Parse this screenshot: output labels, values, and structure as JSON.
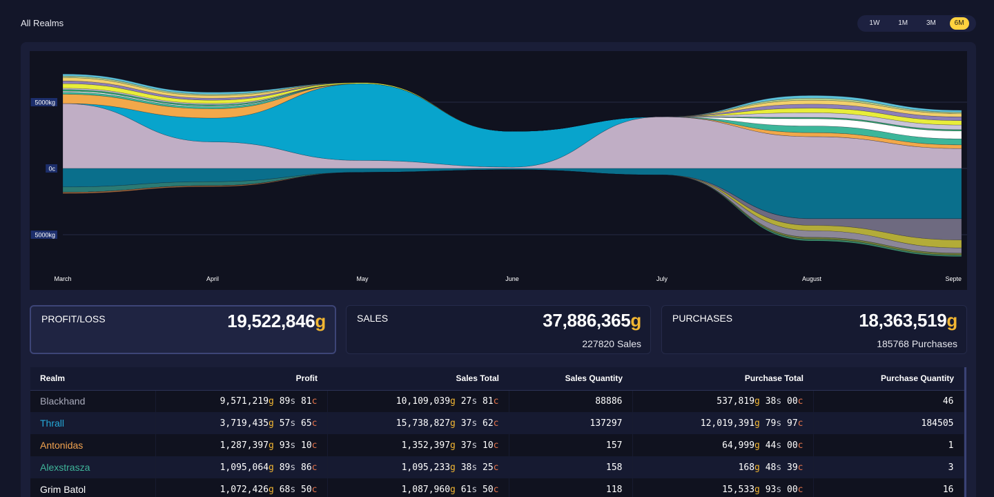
{
  "header": {
    "title": "All Realms",
    "ranges": [
      {
        "label": "1W",
        "active": false
      },
      {
        "label": "1M",
        "active": false
      },
      {
        "label": "3M",
        "active": false
      },
      {
        "label": "6M",
        "active": true
      }
    ]
  },
  "chart_data": {
    "type": "area",
    "stacked": "streamgraph",
    "x": [
      "March",
      "April",
      "May",
      "June",
      "July",
      "August",
      "Septe"
    ],
    "y_tick_labels": [
      "5000kg",
      "0c",
      "5000kg"
    ],
    "y_ticks": [
      5000,
      0,
      -5000
    ],
    "ylim": [
      -6500,
      7500
    ],
    "grid": true,
    "legend": "none",
    "positive_series": [
      {
        "color": "#c0aec5",
        "values": [
          4900,
          2000,
          600,
          100,
          3900,
          2400,
          1500
        ]
      },
      {
        "color": "#08a4cc",
        "values": [
          0,
          1800,
          5800,
          2700,
          0,
          0,
          0
        ]
      },
      {
        "color": "#f2a84a",
        "values": [
          700,
          700,
          0,
          0,
          0,
          300,
          280
        ]
      },
      {
        "color": "#3cb69a",
        "values": [
          150,
          150,
          0,
          0,
          0,
          500,
          450
        ]
      },
      {
        "color": "#ffffff",
        "values": [
          80,
          60,
          0,
          0,
          0,
          550,
          600
        ]
      },
      {
        "color": "#2fa36e",
        "values": [
          120,
          100,
          0,
          0,
          0,
          100,
          100
        ]
      },
      {
        "color": "#c9c4d9",
        "values": [
          100,
          90,
          0,
          0,
          0,
          350,
          350
        ]
      },
      {
        "color": "#e8ed3a",
        "values": [
          350,
          250,
          80,
          0,
          0,
          350,
          330
        ]
      },
      {
        "color": "#8d7fb8",
        "values": [
          200,
          150,
          0,
          0,
          0,
          300,
          280
        ]
      },
      {
        "color": "#f2d06b",
        "values": [
          250,
          200,
          0,
          0,
          0,
          300,
          250
        ]
      },
      {
        "color": "#b4d08a",
        "values": [
          120,
          100,
          0,
          0,
          0,
          150,
          100
        ]
      },
      {
        "color": "#5cc1d9",
        "values": [
          150,
          150,
          0,
          0,
          0,
          200,
          150
        ]
      }
    ],
    "negative_series": [
      {
        "color": "#0a6f8c",
        "values": [
          1400,
          1000,
          300,
          100,
          500,
          3800,
          3800
        ]
      },
      {
        "color": "#2b7a74",
        "values": [
          400,
          300,
          0,
          0,
          0,
          0,
          0
        ]
      },
      {
        "color": "#6e6a80",
        "values": [
          0,
          0,
          0,
          0,
          0,
          500,
          1600
        ]
      },
      {
        "color": "#b3ac38",
        "values": [
          0,
          0,
          0,
          0,
          0,
          400,
          600
        ]
      },
      {
        "color": "#8c8799",
        "values": [
          0,
          0,
          0,
          0,
          0,
          500,
          400
        ]
      },
      {
        "color": "#6e7c3a",
        "values": [
          0,
          0,
          0,
          0,
          0,
          150,
          150
        ]
      },
      {
        "color": "#a0663a",
        "values": [
          100,
          80,
          0,
          0,
          0,
          0,
          0
        ]
      },
      {
        "color": "#3a8a6a",
        "values": [
          0,
          0,
          0,
          0,
          0,
          120,
          100
        ]
      }
    ]
  },
  "cards": [
    {
      "label": "PROFIT/LOSS",
      "value": "19,522,846",
      "unit": "g",
      "sub": "",
      "selected": true
    },
    {
      "label": "SALES",
      "value": "37,886,365",
      "unit": "g",
      "sub": "227820 Sales",
      "selected": false
    },
    {
      "label": "PURCHASES",
      "value": "18,363,519",
      "unit": "g",
      "sub": "185768 Purchases",
      "selected": false
    }
  ],
  "table": {
    "headers": [
      "Realm",
      "Profit",
      "Sales Total",
      "Sales Quantity",
      "Purchase Total",
      "Purchase Quantity"
    ],
    "rows": [
      {
        "realm": "Blackhand",
        "color": "#a9abbb",
        "profit": {
          "g": "9,571,219",
          "s": "89",
          "c": "81"
        },
        "sales_total": {
          "g": "10,109,039",
          "s": "27",
          "c": "81"
        },
        "sales_qty": "88886",
        "purchase_total": {
          "g": "537,819",
          "s": "38",
          "c": "00"
        },
        "purchase_qty": "46"
      },
      {
        "realm": "Thrall",
        "color": "#25a9d8",
        "profit": {
          "g": "3,719,435",
          "s": "57",
          "c": "65"
        },
        "sales_total": {
          "g": "15,738,827",
          "s": "37",
          "c": "62"
        },
        "sales_qty": "137297",
        "purchase_total": {
          "g": "12,019,391",
          "s": "79",
          "c": "97"
        },
        "purchase_qty": "184505"
      },
      {
        "realm": "Antonidas",
        "color": "#f2a34f",
        "profit": {
          "g": "1,287,397",
          "s": "93",
          "c": "10"
        },
        "sales_total": {
          "g": "1,352,397",
          "s": "37",
          "c": "10"
        },
        "sales_qty": "157",
        "purchase_total": {
          "g": "64,999",
          "s": "44",
          "c": "00"
        },
        "purchase_qty": "1"
      },
      {
        "realm": "Alexstrasza",
        "color": "#3fb59a",
        "profit": {
          "g": "1,095,064",
          "s": "89",
          "c": "86"
        },
        "sales_total": {
          "g": "1,095,233",
          "s": "38",
          "c": "25"
        },
        "sales_qty": "158",
        "purchase_total": {
          "g": "168",
          "s": "48",
          "c": "39"
        },
        "purchase_qty": "3"
      },
      {
        "realm": "Grim Batol",
        "color": "#ffffff",
        "profit": {
          "g": "1,072,426",
          "s": "68",
          "c": "50"
        },
        "sales_total": {
          "g": "1,087,960",
          "s": "61",
          "c": "50"
        },
        "sales_qty": "118",
        "purchase_total": {
          "g": "15,533",
          "s": "93",
          "c": "00"
        },
        "purchase_qty": "16"
      }
    ]
  }
}
